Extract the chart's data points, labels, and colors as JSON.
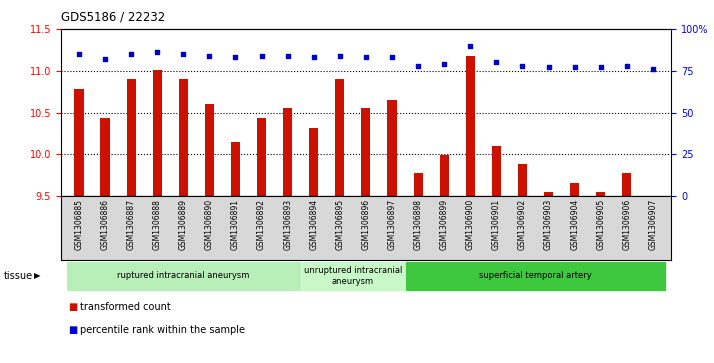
{
  "title": "GDS5186 / 22232",
  "samples": [
    "GSM1306885",
    "GSM1306886",
    "GSM1306887",
    "GSM1306888",
    "GSM1306889",
    "GSM1306890",
    "GSM1306891",
    "GSM1306892",
    "GSM1306893",
    "GSM1306894",
    "GSM1306895",
    "GSM1306896",
    "GSM1306897",
    "GSM1306898",
    "GSM1306899",
    "GSM1306900",
    "GSM1306901",
    "GSM1306902",
    "GSM1306903",
    "GSM1306904",
    "GSM1306905",
    "GSM1306906",
    "GSM1306907"
  ],
  "transformed_count": [
    10.78,
    10.44,
    10.9,
    11.01,
    10.9,
    10.6,
    10.15,
    10.44,
    10.55,
    10.32,
    10.9,
    10.55,
    10.65,
    9.78,
    9.99,
    11.18,
    10.1,
    9.88,
    9.55,
    9.65,
    9.55,
    9.78,
    9.5
  ],
  "percentile_rank": [
    85,
    82,
    85,
    86,
    85,
    84,
    83,
    84,
    84,
    83,
    84,
    83,
    83,
    78,
    79,
    90,
    80,
    78,
    77,
    77,
    77,
    78,
    76
  ],
  "ylim_left": [
    9.5,
    11.5
  ],
  "ylim_right": [
    0,
    100
  ],
  "y_ticks_left": [
    9.5,
    10.0,
    10.5,
    11.0,
    11.5
  ],
  "y_ticks_right": [
    0,
    25,
    50,
    75,
    100
  ],
  "bar_color": "#cc1100",
  "scatter_color": "#0000cc",
  "bg_color": "#ffffff",
  "label_bg_color": "#d8d8d8",
  "tissue_groups": [
    {
      "label": "ruptured intracranial aneurysm",
      "start": 0,
      "end": 9,
      "color": "#b8eeb8"
    },
    {
      "label": "unruptured intracranial\naneurysm",
      "start": 9,
      "end": 13,
      "color": "#c8f8c8"
    },
    {
      "label": "superficial temporal artery",
      "start": 13,
      "end": 23,
      "color": "#40cc40"
    }
  ],
  "tissue_label": "tissue",
  "legend_bar_label": "transformed count",
  "legend_scatter_label": "percentile rank within the sample"
}
